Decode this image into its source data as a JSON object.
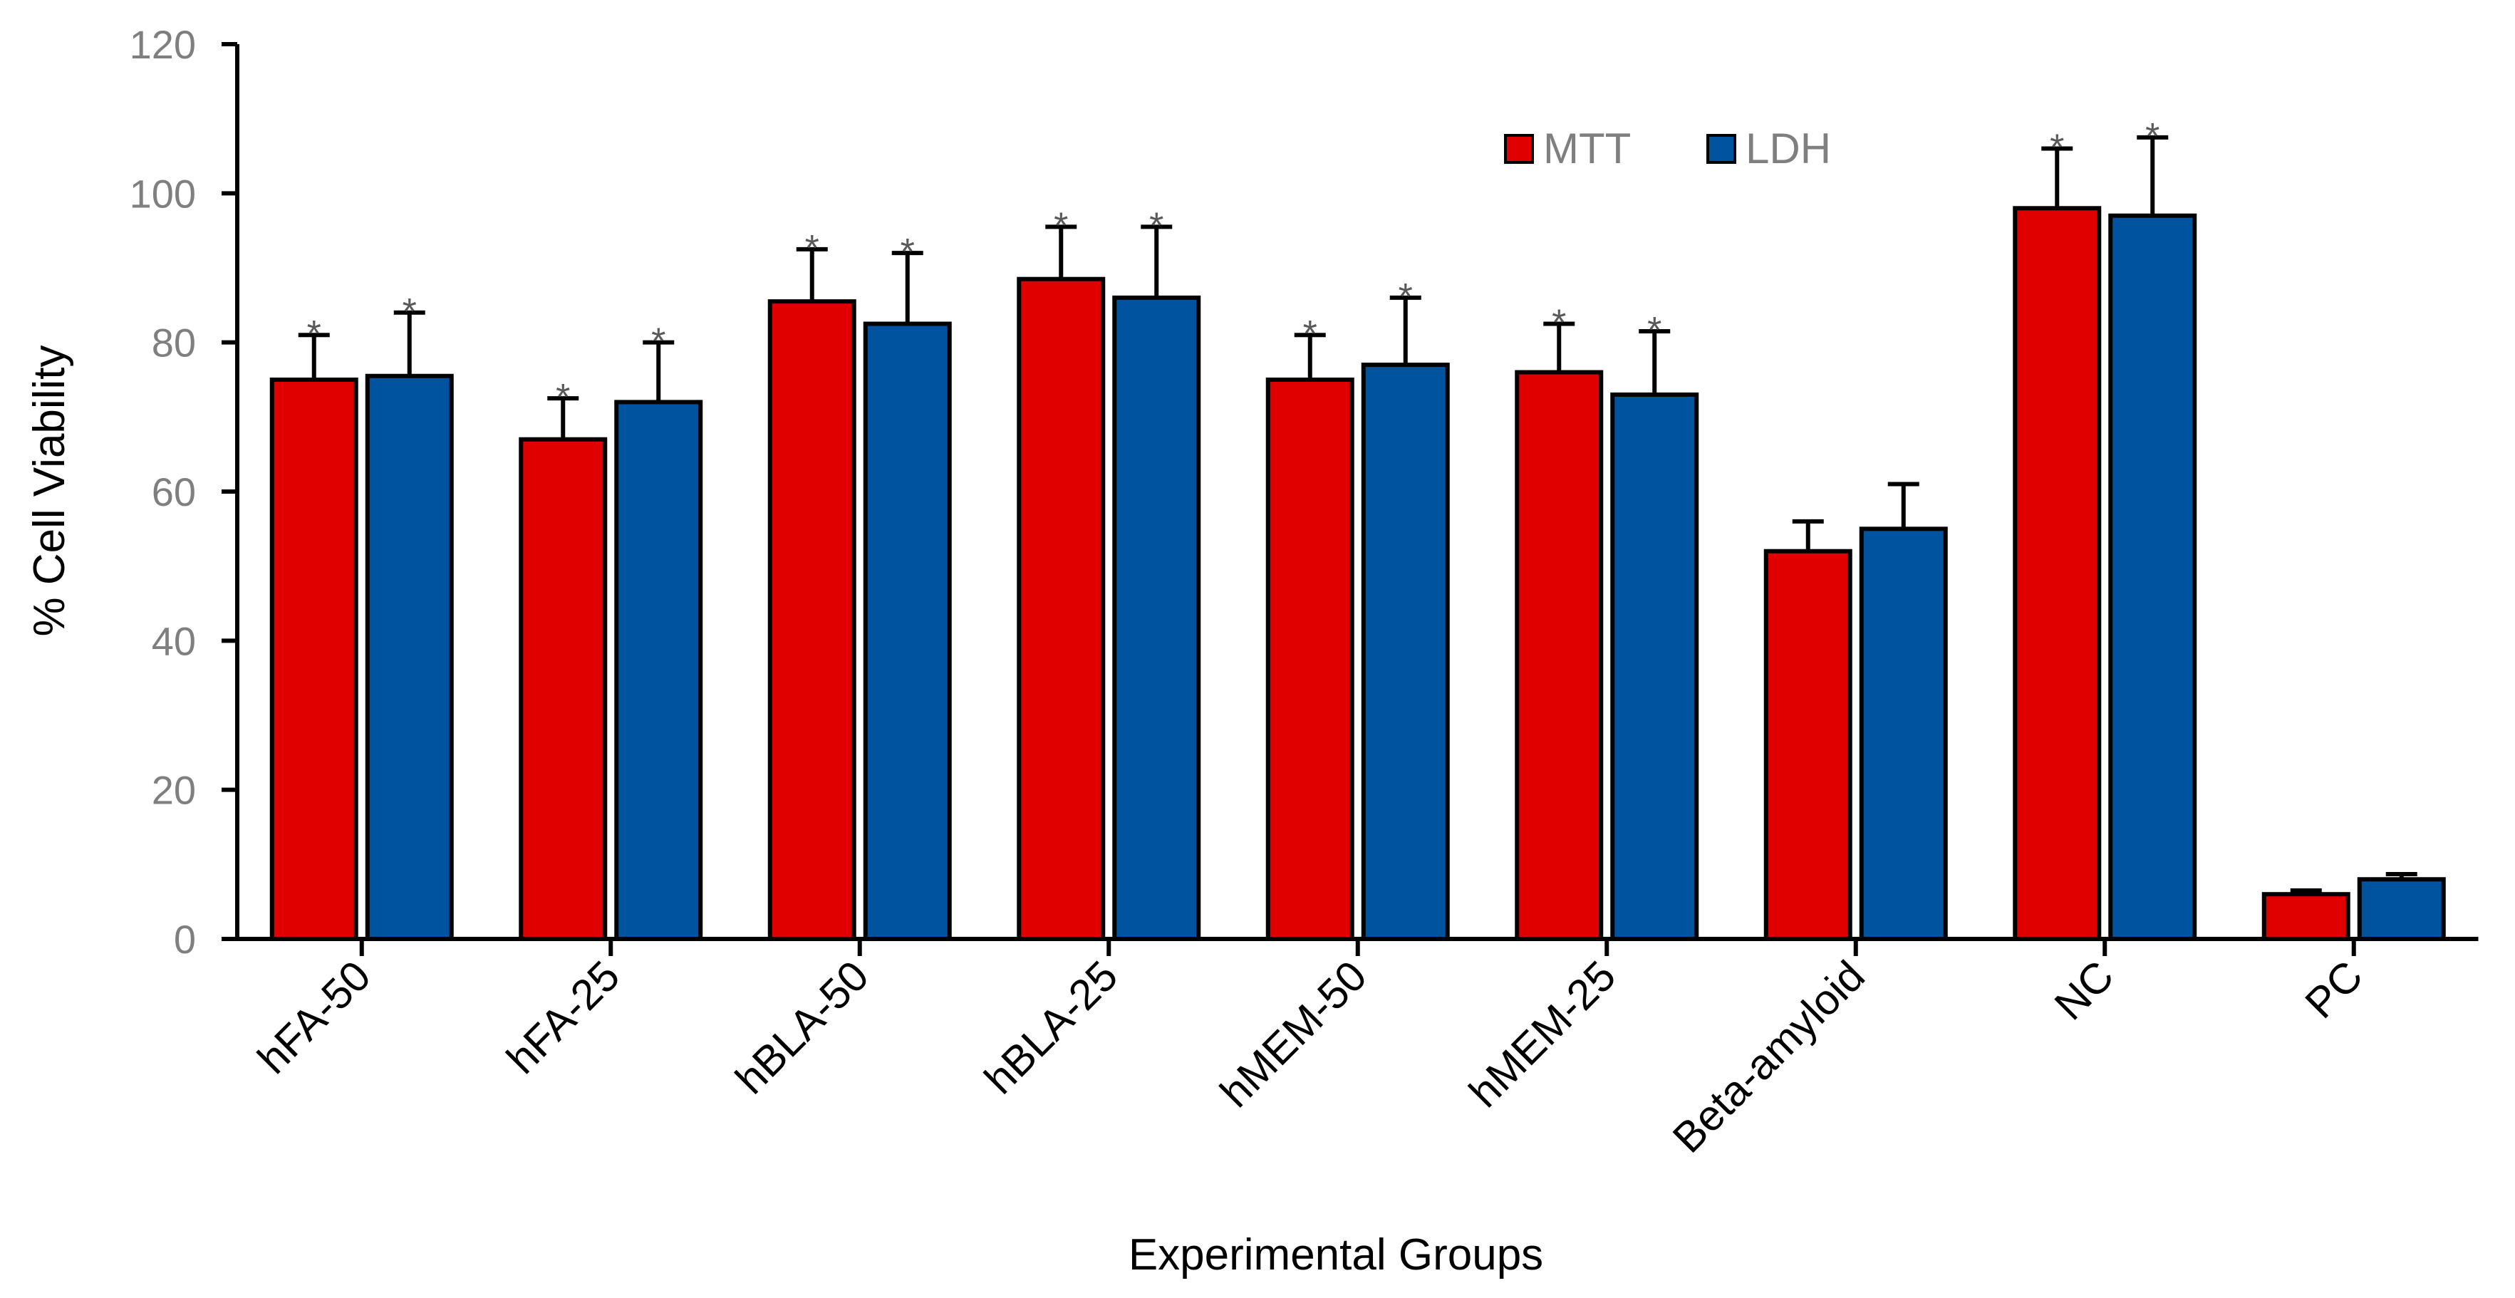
{
  "chart_data": {
    "type": "bar",
    "title": "",
    "xlabel": "Experimental Groups",
    "ylabel": "% Cell Viability",
    "ylim": [
      0,
      120
    ],
    "yticks": [
      "0",
      "20",
      "40",
      "60",
      "80",
      "100",
      "120"
    ],
    "grid": false,
    "legend_position": "top-right",
    "categories": [
      "hFA-50",
      "hFA-25",
      "hBLA-50",
      "hBLA-25",
      "hMEM-50",
      "hMEM-25",
      "Beta-amyloid",
      "NC",
      "PC"
    ],
    "series": [
      {
        "name": "MTT",
        "color": "#e00000",
        "values": [
          75,
          67,
          85.5,
          88.5,
          75,
          76,
          52,
          98,
          6
        ],
        "errors": [
          6,
          5.5,
          7,
          7,
          6,
          6.5,
          4,
          8,
          0.5
        ],
        "significance": [
          "*",
          "*",
          "*",
          "*",
          "*",
          "*",
          "",
          "*",
          ""
        ]
      },
      {
        "name": "LDH",
        "color": "#00539f",
        "values": [
          75.5,
          72,
          82.5,
          86,
          77,
          73,
          55,
          97,
          8
        ],
        "errors": [
          8.5,
          8,
          9.5,
          9.5,
          9,
          8.5,
          6,
          10.5,
          0.7
        ],
        "significance": [
          "*",
          "*",
          "*",
          "*",
          "*",
          "*",
          "",
          "*",
          ""
        ]
      }
    ]
  }
}
